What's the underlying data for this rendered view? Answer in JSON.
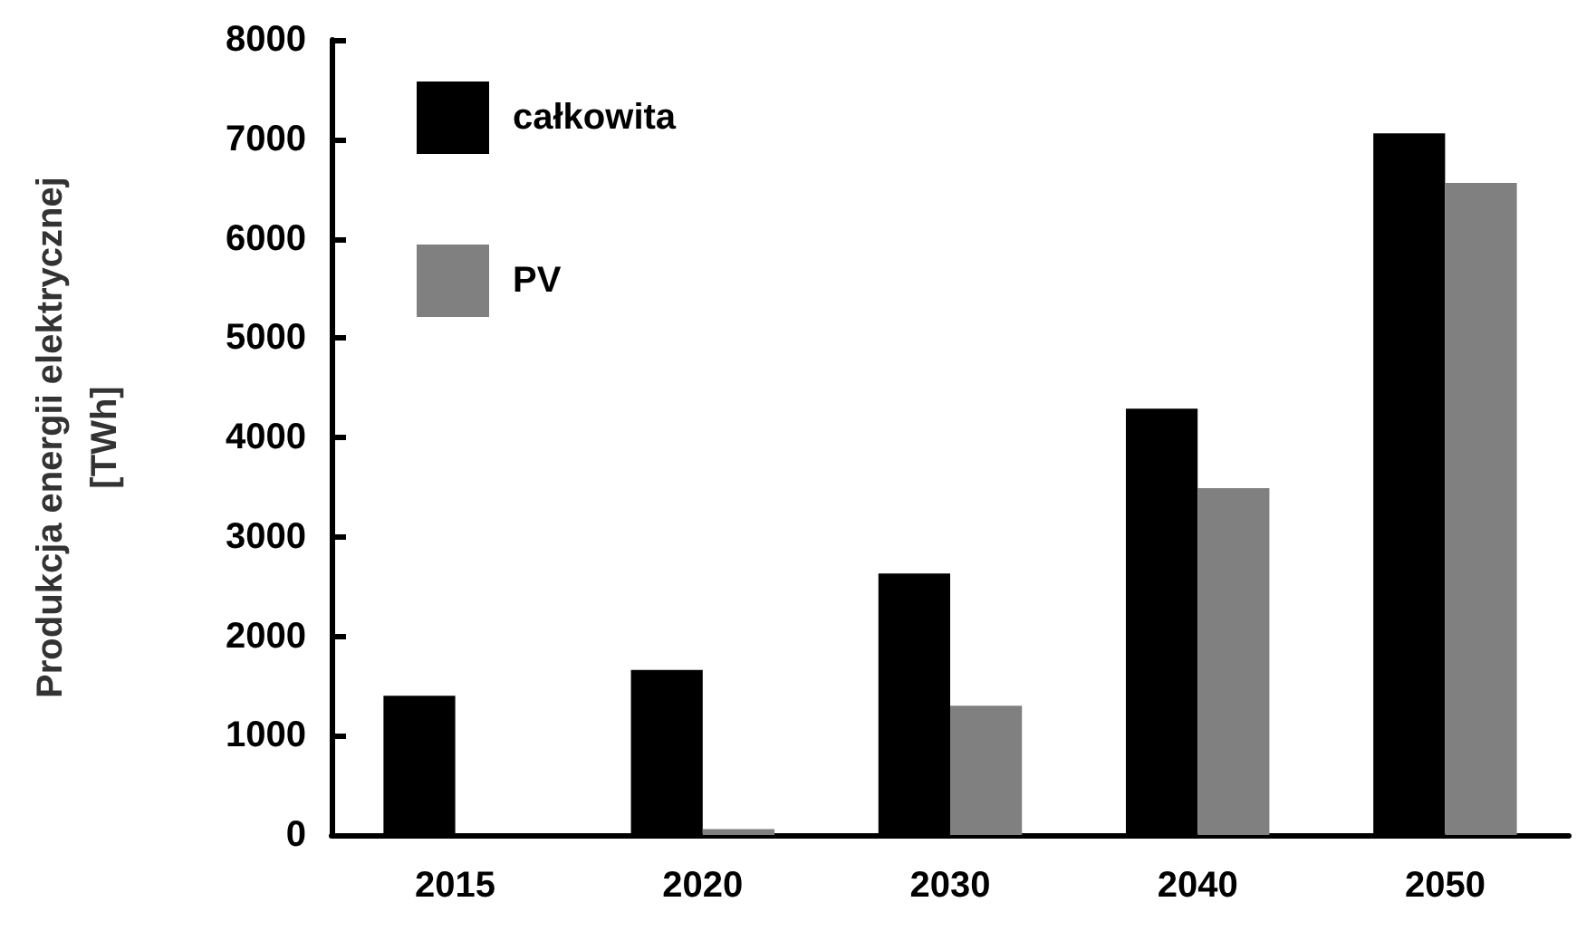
{
  "chart_data": {
    "type": "bar",
    "ylabel": "Produkcja energii elektrycznej\n[TWh]",
    "categories": [
      "2015",
      "2020",
      "2030",
      "2040",
      "2050"
    ],
    "series": [
      {
        "name": "całkowita",
        "color": "#000000",
        "values": [
          1400,
          1660,
          2630,
          4290,
          7060
        ]
      },
      {
        "name": "PV",
        "color": "#808080",
        "values": [
          null,
          60,
          1300,
          3490,
          6560
        ]
      }
    ],
    "ylim": [
      0,
      8000
    ],
    "yticks": [
      0,
      1000,
      2000,
      3000,
      4000,
      5000,
      6000,
      7000,
      8000
    ],
    "grid": false,
    "legend": "top left"
  }
}
